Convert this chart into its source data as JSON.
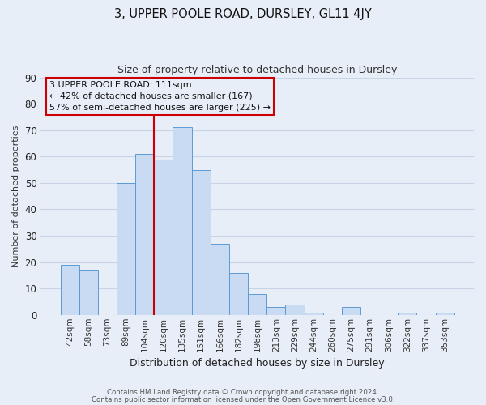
{
  "title": "3, UPPER POOLE ROAD, DURSLEY, GL11 4JY",
  "subtitle": "Size of property relative to detached houses in Dursley",
  "xlabel": "Distribution of detached houses by size in Dursley",
  "ylabel": "Number of detached properties",
  "bar_labels": [
    "42sqm",
    "58sqm",
    "73sqm",
    "89sqm",
    "104sqm",
    "120sqm",
    "135sqm",
    "151sqm",
    "166sqm",
    "182sqm",
    "198sqm",
    "213sqm",
    "229sqm",
    "244sqm",
    "260sqm",
    "275sqm",
    "291sqm",
    "306sqm",
    "322sqm",
    "337sqm",
    "353sqm"
  ],
  "bar_heights": [
    19,
    17,
    0,
    50,
    61,
    59,
    71,
    55,
    27,
    16,
    8,
    3,
    4,
    1,
    0,
    3,
    0,
    0,
    1,
    0,
    1
  ],
  "bar_color": "#c9dbf2",
  "bar_edge_color": "#5b9bd5",
  "grid_color": "#c8d4e6",
  "background_color": "#e8eef7",
  "annotation_line1": "3 UPPER POOLE ROAD: 111sqm",
  "annotation_line2": "← 42% of detached houses are smaller (167)",
  "annotation_line3": "57% of semi-detached houses are larger (225) →",
  "annotation_box_edge_color": "#cc0000",
  "vline_color": "#cc0000",
  "vline_x_index": 4.5,
  "ylim": [
    0,
    90
  ],
  "yticks": [
    0,
    10,
    20,
    30,
    40,
    50,
    60,
    70,
    80,
    90
  ],
  "footer_line1": "Contains HM Land Registry data © Crown copyright and database right 2024.",
  "footer_line2": "Contains public sector information licensed under the Open Government Licence v3.0."
}
